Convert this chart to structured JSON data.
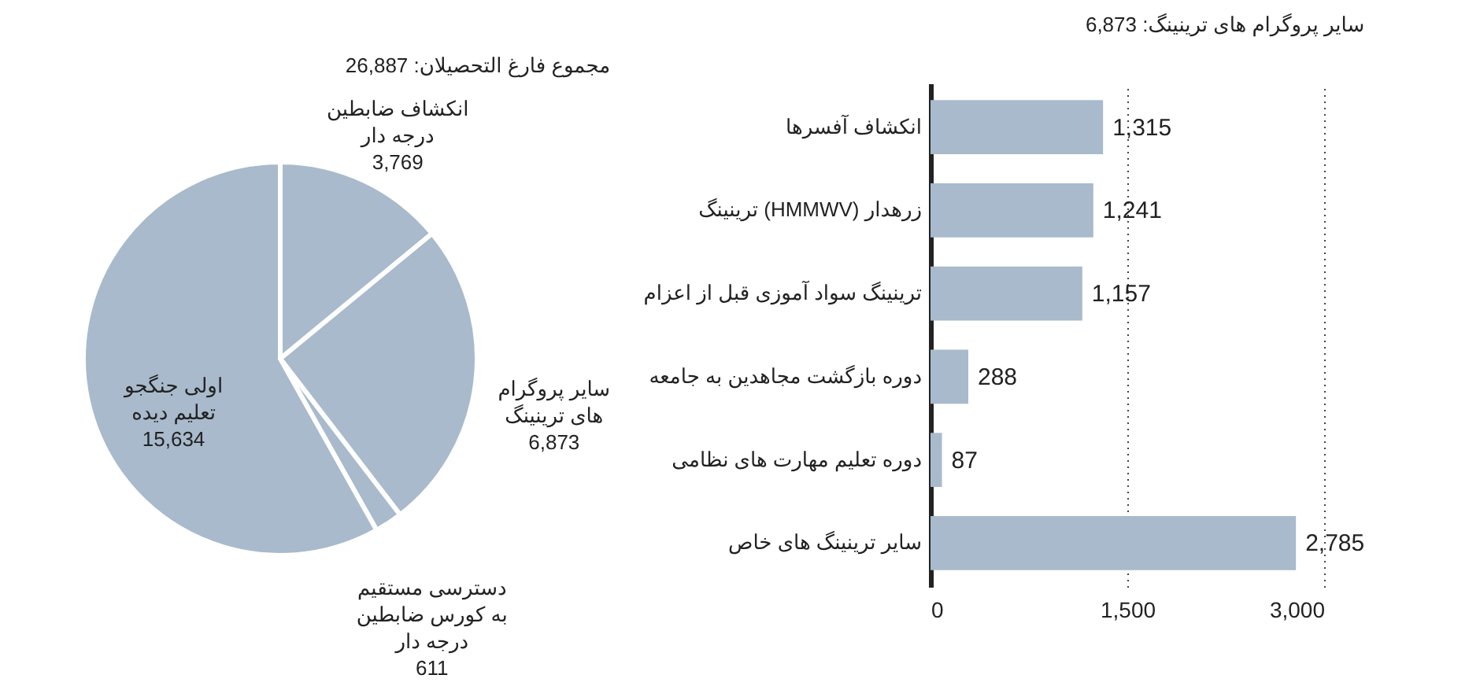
{
  "chart_data": [
    {
      "type": "pie",
      "title": "مجموع فارغ التحصیلان: 26,887",
      "categories": [
        "انکشاف ضابطین درجه دار",
        "سایر پروگرام های ترینینگ",
        "دسترسی مستقیم به کورس ضابطین درجه دار",
        "اولی جنگجو تعلیم دیده"
      ],
      "values": [
        3769,
        6873,
        611,
        15634
      ],
      "value_labels": [
        "3,769",
        "6,873",
        "611",
        "15,634"
      ],
      "colors": [
        "#a8bacc",
        "#a8bacc",
        "#a8bacc",
        "#a8bacc"
      ],
      "data_labels": true
    },
    {
      "type": "bar",
      "orientation": "horizontal",
      "title": "سایر پروگرام های ترینینگ: 6,873",
      "categories": [
        "انکشاف آفسرها",
        "ترینینگ (HMMWV) زرهدار",
        "ترینینگ سواد آموزی قبل از اعزام",
        "دوره بازگشت مجاهدین به جامعه",
        "دوره تعلیم مهارت های نظامی",
        "سایر ترینینگ های خاص"
      ],
      "values": [
        1315,
        1241,
        1157,
        288,
        87,
        2785
      ],
      "value_labels": [
        "1,315",
        "1,241",
        "1,157",
        "288",
        "87",
        "2,785"
      ],
      "color": "#a8bacc",
      "xlim": [
        0,
        3000
      ],
      "xticks": [
        0,
        {
          "value": 1500,
          "label": "1,500"
        },
        {
          "value": 3000,
          "label": "3,000"
        }
      ],
      "grid": "x",
      "data_labels": true
    }
  ]
}
